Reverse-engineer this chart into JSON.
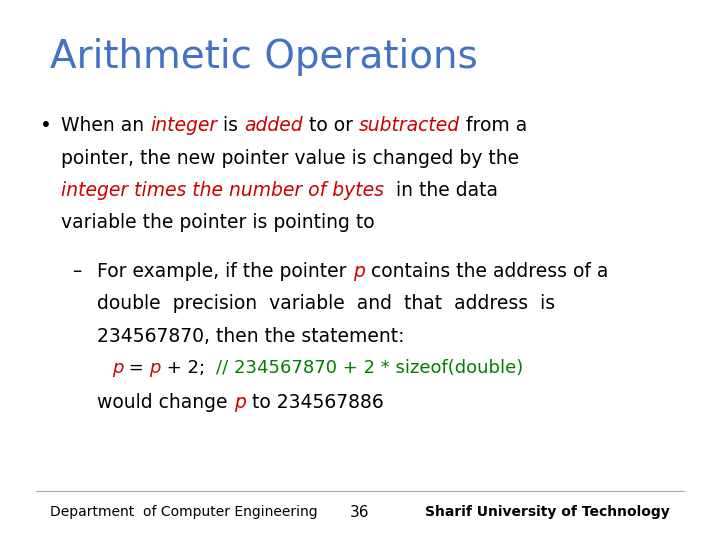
{
  "title": "Arithmetic Operations",
  "title_color": "#4472C4",
  "title_fontsize": 28,
  "bg_color": "#FFFFFF",
  "footer_left": "Department  of Computer Engineering",
  "footer_center": "36",
  "footer_right": "Sharif University of Technology",
  "footer_fontsize": 10,
  "body_fontsize": 13.5,
  "code_fontsize": 13.0,
  "black": "#000000",
  "red": "#CC0000",
  "green": "#007F00"
}
